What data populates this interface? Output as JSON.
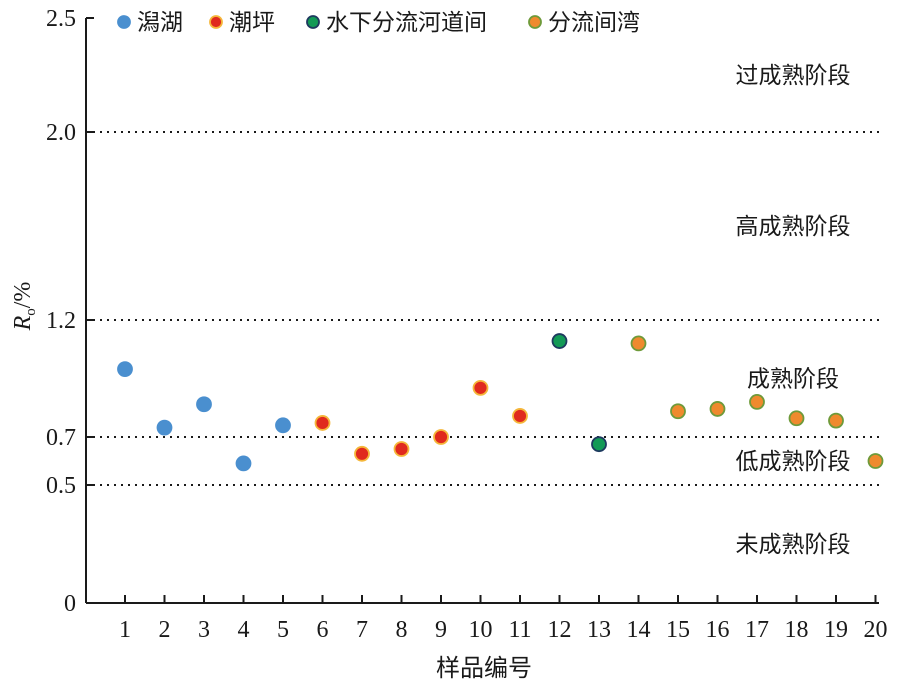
{
  "chart_data": {
    "type": "scatter",
    "xlabel": "样品编号",
    "ylabel": {
      "symbol": "R",
      "sub": "o",
      "unit": "/%"
    },
    "x_ticks": [
      1,
      2,
      3,
      4,
      5,
      6,
      7,
      8,
      9,
      10,
      11,
      12,
      13,
      14,
      15,
      16,
      17,
      18,
      19,
      20
    ],
    "y_ticks": [
      {
        "value": 0,
        "label": "0"
      },
      {
        "value": 0.5,
        "label": "0.5"
      },
      {
        "value": 0.7,
        "label": "0.7"
      },
      {
        "value": 1.2,
        "label": "1.2"
      },
      {
        "value": 2.0,
        "label": "2.0"
      },
      {
        "value": 2.5,
        "label": "2.5"
      }
    ],
    "ylim": [
      0,
      2.5
    ],
    "xlim": [
      0,
      20.05
    ],
    "y_scale": "piecewise",
    "reference_lines": [
      0.5,
      0.7,
      1.2,
      2.0
    ],
    "zones": [
      {
        "label": "过成熟阶段",
        "y": 2.25
      },
      {
        "label": "高成熟阶段",
        "y": 1.6
      },
      {
        "label": "成熟阶段",
        "y": 0.95
      },
      {
        "label": "低成熟阶段",
        "y": 0.6
      },
      {
        "label": "未成熟阶段",
        "y": 0.25
      }
    ],
    "legend_position": "top-left",
    "series": [
      {
        "name": "潟湖",
        "color": "#4a8fcf",
        "edge": "#4a8fcf",
        "points": [
          [
            1,
            0.99
          ],
          [
            2,
            0.74
          ],
          [
            3,
            0.84
          ],
          [
            4,
            0.59
          ],
          [
            5,
            0.75
          ]
        ]
      },
      {
        "name": "潮坪",
        "color": "#e02a1e",
        "edge": "#f5b73a",
        "points": [
          [
            6,
            0.76
          ],
          [
            7,
            0.63
          ],
          [
            8,
            0.65
          ],
          [
            9,
            0.7
          ],
          [
            10,
            0.91
          ],
          [
            11,
            0.79
          ]
        ]
      },
      {
        "name": "水下分流河道间",
        "color": "#139a56",
        "edge": "#1e3a5f",
        "points": [
          [
            12,
            1.11
          ],
          [
            13,
            0.67
          ]
        ]
      },
      {
        "name": "分流间湾",
        "color": "#ef8a2e",
        "edge": "#6e9a3a",
        "points": [
          [
            14,
            1.1
          ],
          [
            15,
            0.81
          ],
          [
            16,
            0.82
          ],
          [
            17,
            0.85
          ],
          [
            18,
            0.78
          ],
          [
            19,
            0.77
          ],
          [
            20,
            0.6
          ]
        ]
      }
    ]
  }
}
